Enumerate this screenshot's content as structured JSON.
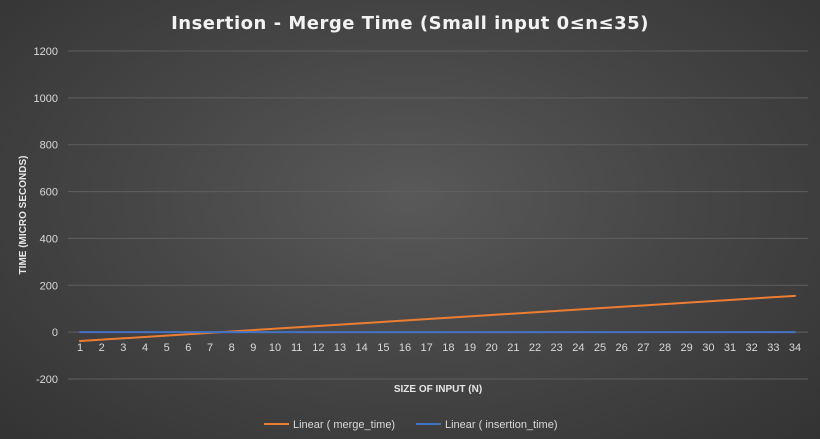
{
  "chart_data": {
    "type": "line",
    "title": "Insertion - Merge Time (Small input 0≤n≤35)",
    "xlabel": "SIZE OF INPUT (N)",
    "ylabel": "TIME (MICRO SECONDS)",
    "categories": [
      "1",
      "2",
      "3",
      "4",
      "5",
      "6",
      "7",
      "8",
      "9",
      "10",
      "11",
      "12",
      "13",
      "14",
      "15",
      "16",
      "17",
      "18",
      "19",
      "20",
      "21",
      "22",
      "23",
      "24",
      "25",
      "26",
      "27",
      "28",
      "29",
      "30",
      "31",
      "32",
      "33",
      "34"
    ],
    "ylim": [
      -200,
      1200
    ],
    "yticks": [
      -200,
      0,
      200,
      400,
      600,
      800,
      1000,
      1200
    ],
    "ytick_labels": [
      "-200",
      "0",
      "200",
      "400",
      "600",
      "800",
      "1000",
      "1200"
    ],
    "grid": true,
    "legend_position": "bottom",
    "series": [
      {
        "name": "Linear ( merge_time)",
        "color": "#ed7d31",
        "x_start": 1,
        "x_end": 34,
        "y_start": -38,
        "y_end": 155
      },
      {
        "name": "Linear ( insertion_time)",
        "color": "#4472c4",
        "x_start": 1,
        "x_end": 34,
        "y_start": 0,
        "y_end": 0
      }
    ]
  }
}
